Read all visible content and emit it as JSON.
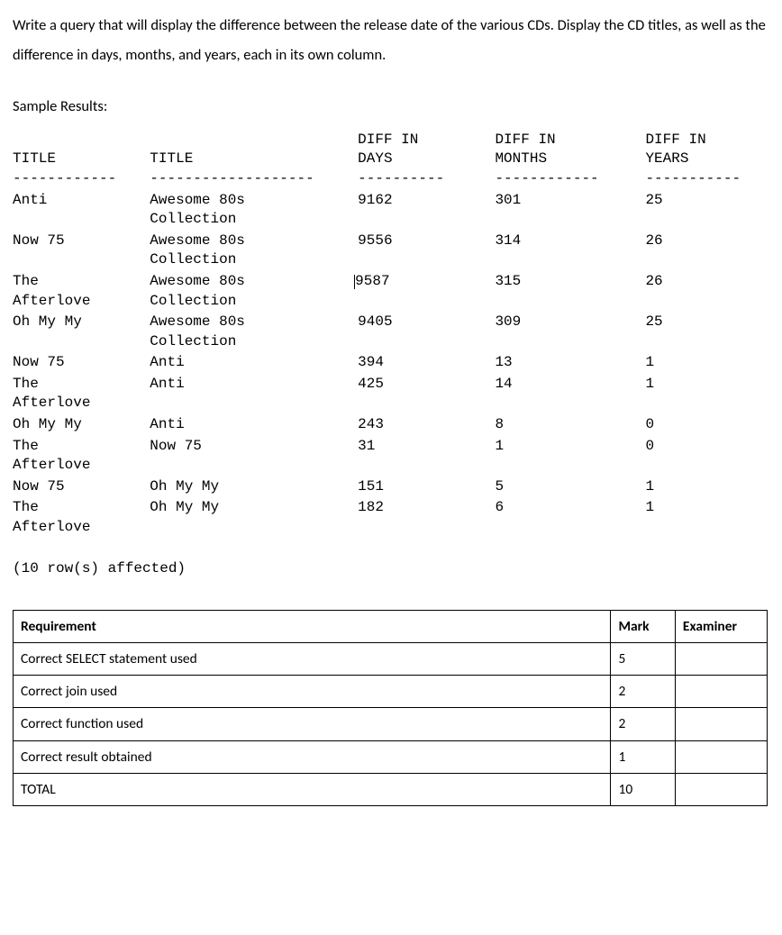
{
  "question_text": "Write a query that will display the difference between the release date of the various CDs. Display the CD titles, as well as the difference in days, months, and years, each in its own column.",
  "sample_results_label": "Sample Results:",
  "results": {
    "headers": {
      "c1": "TITLE",
      "c2": "TITLE",
      "c3_line1": "DIFF IN",
      "c3_line2": "DAYS",
      "c4_line1": "DIFF IN",
      "c4_line2": "MONTHS",
      "c5_line1": "DIFF IN",
      "c5_line2": "YEARS"
    },
    "dashes": {
      "c1": "------------",
      "c2": "-------------------",
      "c3": "----------",
      "c4": "------------",
      "c5": "-----------"
    },
    "rows": [
      {
        "t1": "Anti",
        "t2": "Awesome 80s\nCollection",
        "days": "9162",
        "months": "301",
        "years": "25",
        "cursor": false
      },
      {
        "t1": "Now 75",
        "t2": "Awesome 80s\nCollection",
        "days": "9556",
        "months": "314",
        "years": "26",
        "cursor": false
      },
      {
        "t1": "The\nAfterlove",
        "t2": "Awesome 80s\nCollection",
        "days": "9587",
        "months": "315",
        "years": "26",
        "cursor": true
      },
      {
        "t1": "Oh My My",
        "t2": "Awesome 80s\nCollection",
        "days": "9405",
        "months": "309",
        "years": "25",
        "cursor": false
      },
      {
        "t1": "Now 75",
        "t2": "Anti",
        "days": "394",
        "months": "13",
        "years": "1",
        "cursor": false
      },
      {
        "t1": "The\nAfterlove",
        "t2": "Anti",
        "days": "425",
        "months": "14",
        "years": "1",
        "cursor": false
      },
      {
        "t1": "Oh My My",
        "t2": "Anti",
        "days": "243",
        "months": "8",
        "years": "0",
        "cursor": false
      },
      {
        "t1": "The\nAfterlove",
        "t2": "Now 75",
        "days": "31",
        "months": "1",
        "years": "0",
        "cursor": false
      },
      {
        "t1": "Now 75",
        "t2": "Oh My My",
        "days": "151",
        "months": "5",
        "years": "1",
        "cursor": false
      },
      {
        "t1": "The\nAfterlove",
        "t2": "Oh My My",
        "days": "182",
        "months": "6",
        "years": "1",
        "cursor": false
      }
    ],
    "rows_affected": "(10 row(s) affected)"
  },
  "rubric": {
    "headers": {
      "req": "Requirement",
      "mark": "Mark",
      "exam": "Examiner"
    },
    "rows": [
      {
        "req": "Correct SELECT statement used",
        "mark": "5",
        "exam": ""
      },
      {
        "req": "Correct join used",
        "mark": "2",
        "exam": ""
      },
      {
        "req": "Correct function used",
        "mark": "2",
        "exam": ""
      },
      {
        "req": "Correct result obtained",
        "mark": "1",
        "exam": ""
      },
      {
        "req": "TOTAL",
        "mark": "10",
        "exam": ""
      }
    ]
  }
}
